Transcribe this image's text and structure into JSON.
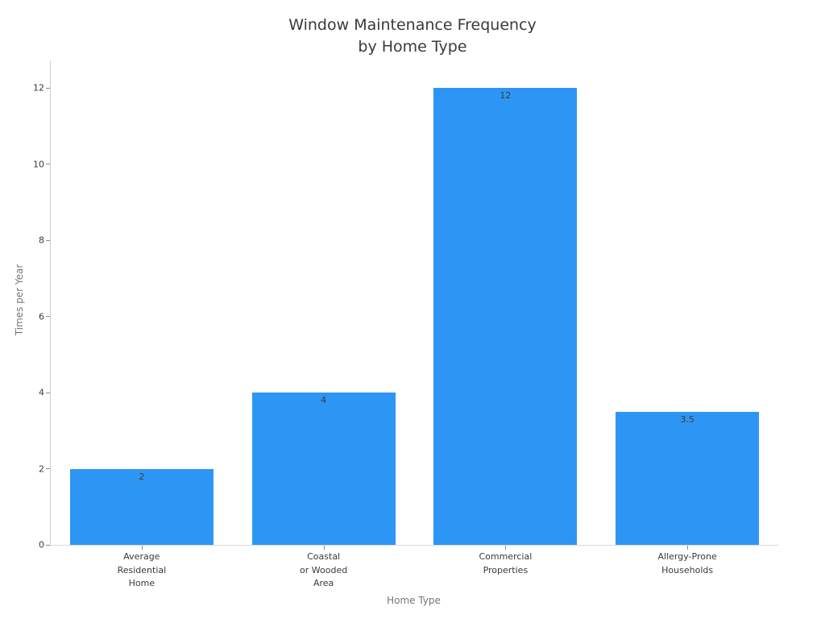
{
  "chart_data": {
    "type": "bar",
    "title": "Window Maintenance Frequency by Home Type",
    "title_lines": [
      "Window Maintenance Frequency",
      "by Home Type"
    ],
    "xlabel": "Home Type",
    "ylabel": "Times per Year",
    "categories": [
      {
        "label": "Average Residential Home",
        "lines": [
          "Average",
          "Residential",
          "Home"
        ]
      },
      {
        "label": "Coastal or Wooded Area",
        "lines": [
          "Coastal",
          "or Wooded",
          "Area"
        ]
      },
      {
        "label": "Commercial Properties",
        "lines": [
          "Commercial",
          "Properties"
        ]
      },
      {
        "label": "Allergy-Prone Households",
        "lines": [
          "Allergy-Prone",
          "Households"
        ]
      }
    ],
    "values": [
      2,
      4,
      12,
      3.5
    ],
    "bar_labels": [
      "2",
      "4",
      "12",
      "3.5"
    ],
    "yticks": [
      0,
      2,
      4,
      6,
      8,
      10,
      12
    ],
    "ylim": [
      0,
      12.72
    ],
    "grid": "off",
    "legend": "none",
    "bar_color": "#2d96f4",
    "value_label_color": "#3d3d3d",
    "axis_line_color": "#cfcfcf",
    "tick_color": "#8c8c8c",
    "title_color": "#3a3a3a",
    "axis_title_color": "#757575"
  }
}
